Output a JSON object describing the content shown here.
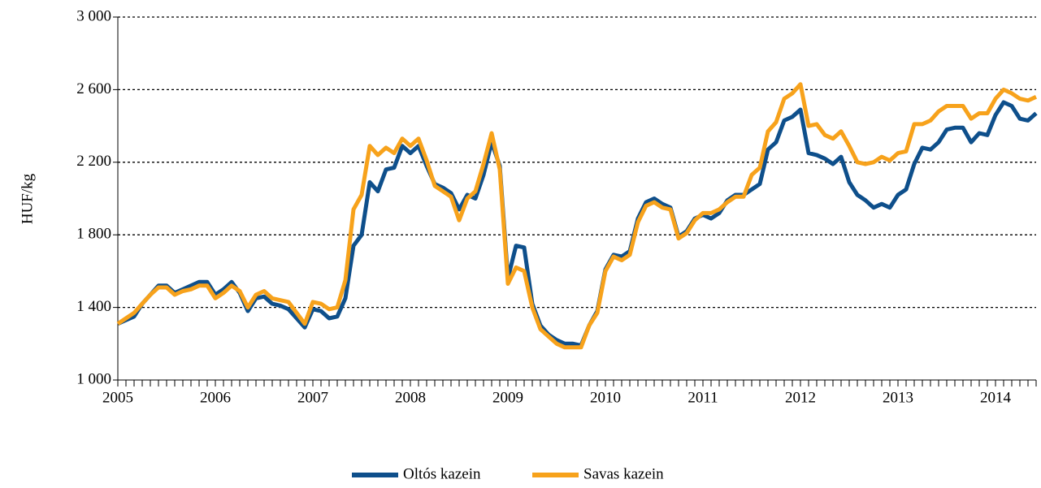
{
  "chart_data": {
    "type": "line",
    "ylabel": "HUF/kg",
    "categories": [
      "2005",
      null,
      null,
      null,
      null,
      null,
      null,
      null,
      null,
      null,
      null,
      null,
      "2006",
      null,
      null,
      null,
      null,
      null,
      null,
      null,
      null,
      null,
      null,
      null,
      "2007",
      null,
      null,
      null,
      null,
      null,
      null,
      null,
      null,
      null,
      null,
      null,
      "2008",
      null,
      null,
      null,
      null,
      null,
      null,
      null,
      null,
      null,
      null,
      null,
      "2009",
      null,
      null,
      null,
      null,
      null,
      null,
      null,
      null,
      null,
      null,
      null,
      "2010",
      null,
      null,
      null,
      null,
      null,
      null,
      null,
      null,
      null,
      null,
      null,
      "2011",
      null,
      null,
      null,
      null,
      null,
      null,
      null,
      null,
      null,
      null,
      null,
      "2012",
      null,
      null,
      null,
      null,
      null,
      null,
      null,
      null,
      null,
      null,
      null,
      "2013",
      null,
      null,
      null,
      null,
      null,
      null,
      null,
      null,
      null,
      null,
      null,
      "2014",
      null,
      null,
      null,
      null,
      null
    ],
    "series": [
      {
        "name": "Oltós kazein",
        "color": "#0e4f8b",
        "values": [
          1310,
          1330,
          1350,
          1420,
          1470,
          1520,
          1520,
          1480,
          1500,
          1520,
          1540,
          1540,
          1470,
          1500,
          1540,
          1480,
          1380,
          1450,
          1460,
          1420,
          1410,
          1390,
          1340,
          1290,
          1390,
          1380,
          1340,
          1350,
          1450,
          1740,
          1800,
          2090,
          2040,
          2160,
          2170,
          2290,
          2250,
          2290,
          2180,
          2080,
          2060,
          2030,
          1940,
          2020,
          2000,
          2130,
          2310,
          2180,
          1560,
          1740,
          1730,
          1420,
          1300,
          1250,
          1220,
          1200,
          1200,
          1190,
          1300,
          1380,
          1610,
          1690,
          1680,
          1710,
          1890,
          1980,
          2000,
          1970,
          1950,
          1790,
          1820,
          1890,
          1910,
          1890,
          1920,
          1990,
          2020,
          2020,
          2050,
          2080,
          2270,
          2310,
          2430,
          2450,
          2490,
          2250,
          2240,
          2220,
          2190,
          2230,
          2090,
          2020,
          1990,
          1950,
          1970,
          1950,
          2020,
          2050,
          2190,
          2280,
          2270,
          2310,
          2380,
          2390,
          2390,
          2310,
          2360,
          2350,
          2460,
          2530,
          2510,
          2440,
          2430,
          2470
        ]
      },
      {
        "name": "Savas kazein",
        "color": "#f7a21b",
        "values": [
          1310,
          1340,
          1370,
          1420,
          1470,
          1510,
          1510,
          1470,
          1490,
          1500,
          1520,
          1520,
          1450,
          1480,
          1520,
          1490,
          1400,
          1470,
          1490,
          1450,
          1440,
          1430,
          1370,
          1310,
          1430,
          1420,
          1390,
          1400,
          1550,
          1940,
          2020,
          2290,
          2240,
          2280,
          2250,
          2330,
          2290,
          2330,
          2210,
          2070,
          2040,
          2010,
          1880,
          2000,
          2040,
          2190,
          2360,
          2160,
          1530,
          1620,
          1600,
          1400,
          1280,
          1240,
          1200,
          1180,
          1180,
          1180,
          1300,
          1370,
          1600,
          1680,
          1660,
          1690,
          1870,
          1960,
          1980,
          1950,
          1940,
          1780,
          1810,
          1880,
          1920,
          1920,
          1940,
          1980,
          2010,
          2010,
          2130,
          2170,
          2370,
          2420,
          2550,
          2580,
          2630,
          2400,
          2410,
          2350,
          2330,
          2370,
          2290,
          2200,
          2190,
          2200,
          2230,
          2210,
          2250,
          2260,
          2410,
          2410,
          2430,
          2480,
          2510,
          2510,
          2510,
          2440,
          2470,
          2470,
          2550,
          2600,
          2580,
          2550,
          2540,
          2560
        ]
      }
    ],
    "ylim": [
      1000,
      3000
    ],
    "yticks": [
      {
        "value": 1000,
        "label": "1 000"
      },
      {
        "value": 1400,
        "label": "1 400"
      },
      {
        "value": 1800,
        "label": "1 800"
      },
      {
        "value": 2200,
        "label": "2 200"
      },
      {
        "value": 2600,
        "label": "2 600"
      },
      {
        "value": 3000,
        "label": "3 000"
      }
    ],
    "grid": true,
    "legend": "bottom"
  }
}
